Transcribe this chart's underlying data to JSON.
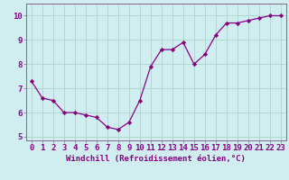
{
  "x": [
    0,
    1,
    2,
    3,
    4,
    5,
    6,
    7,
    8,
    9,
    10,
    11,
    12,
    13,
    14,
    15,
    16,
    17,
    18,
    19,
    20,
    21,
    22,
    23
  ],
  "y": [
    7.3,
    6.6,
    6.5,
    6.0,
    6.0,
    5.9,
    5.8,
    5.4,
    5.3,
    5.6,
    6.5,
    7.9,
    8.6,
    8.6,
    8.9,
    8.0,
    8.4,
    9.2,
    9.7,
    9.7,
    9.8,
    9.9,
    10.0,
    10.0
  ],
  "line_color": "#880088",
  "marker": "D",
  "marker_size": 2.2,
  "bg_color": "#d0eef0",
  "grid_color": "#b0d8cc",
  "xlabel": "Windchill (Refroidissement éolien,°C)",
  "xlim": [
    -0.5,
    23.5
  ],
  "ylim": [
    4.85,
    10.5
  ],
  "yticks": [
    5,
    6,
    7,
    8,
    9,
    10
  ],
  "xticks": [
    0,
    1,
    2,
    3,
    4,
    5,
    6,
    7,
    8,
    9,
    10,
    11,
    12,
    13,
    14,
    15,
    16,
    17,
    18,
    19,
    20,
    21,
    22,
    23
  ],
  "xlabel_fontsize": 6.5,
  "tick_fontsize": 6.5,
  "line_width": 0.9,
  "spine_color": "#886688"
}
